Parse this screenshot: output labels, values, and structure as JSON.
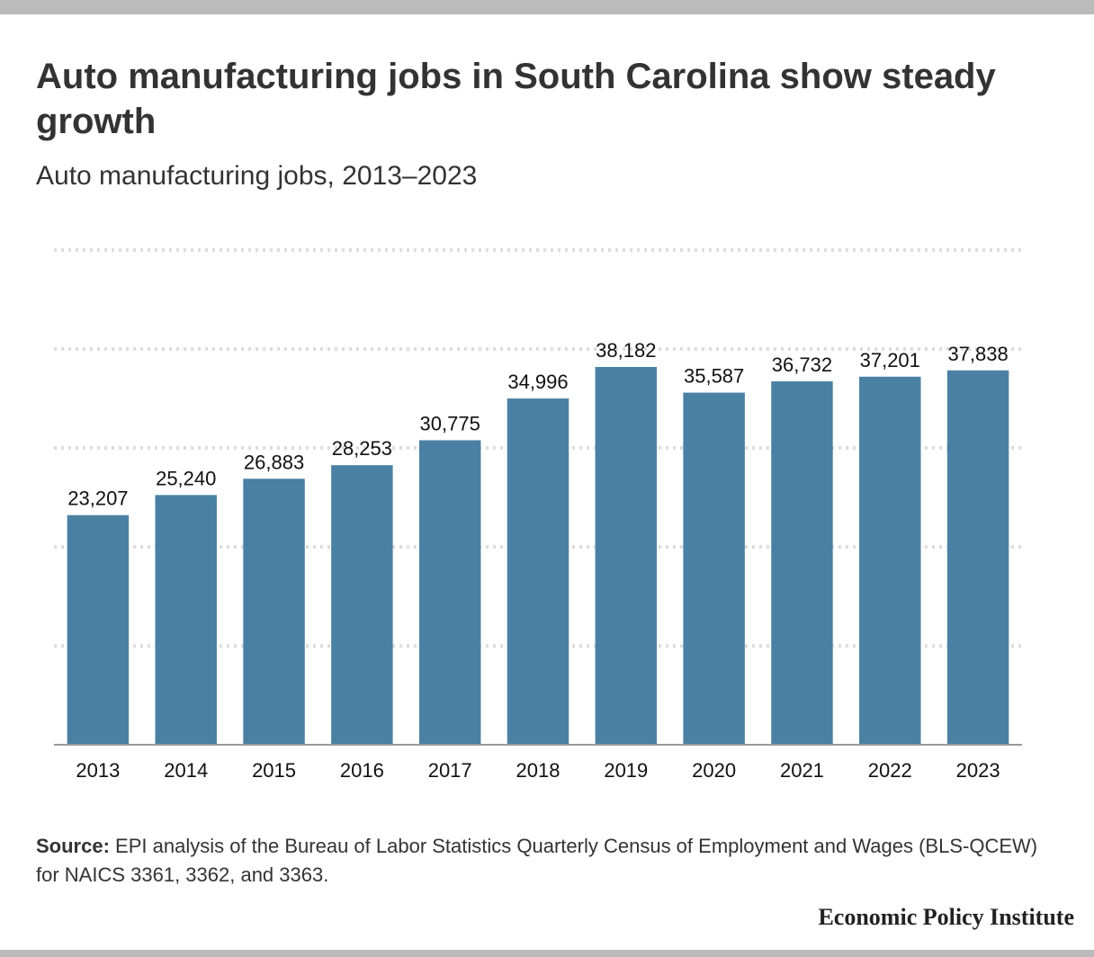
{
  "title": "Auto manufacturing jobs in South Carolina show steady growth",
  "subtitle": "Auto manufacturing jobs, 2013–2023",
  "source": {
    "label": "Source:",
    "text": "EPI analysis of the Bureau of Labor Statistics Quarterly Census of Employment and Wages (BLS-QCEW) for NAICS 3361, 3362, and 3363."
  },
  "brand": "Economic Policy Institute",
  "colors": {
    "bar": "#4a81a3",
    "grid": "#dddddd",
    "axis": "#999999",
    "text": "#333333"
  },
  "chart_data": {
    "type": "bar",
    "title": "Auto manufacturing jobs in South Carolina show steady growth",
    "subtitle": "Auto manufacturing jobs, 2013–2023",
    "categories": [
      "2013",
      "2014",
      "2015",
      "2016",
      "2017",
      "2018",
      "2019",
      "2020",
      "2021",
      "2022",
      "2023"
    ],
    "values": [
      23207,
      25240,
      26883,
      28253,
      30775,
      34996,
      38182,
      35587,
      36732,
      37201,
      37838
    ],
    "data_labels": [
      "23,207",
      "25,240",
      "26,883",
      "28,253",
      "30,775",
      "34,996",
      "38,182",
      "35,587",
      "36,732",
      "37,201",
      "37,838"
    ],
    "ylim": [
      0,
      50000
    ],
    "grid": true,
    "gridlines": [
      10000,
      20000,
      30000,
      40000,
      50000
    ],
    "y_tick_labels_shown": false,
    "legend": "none"
  }
}
